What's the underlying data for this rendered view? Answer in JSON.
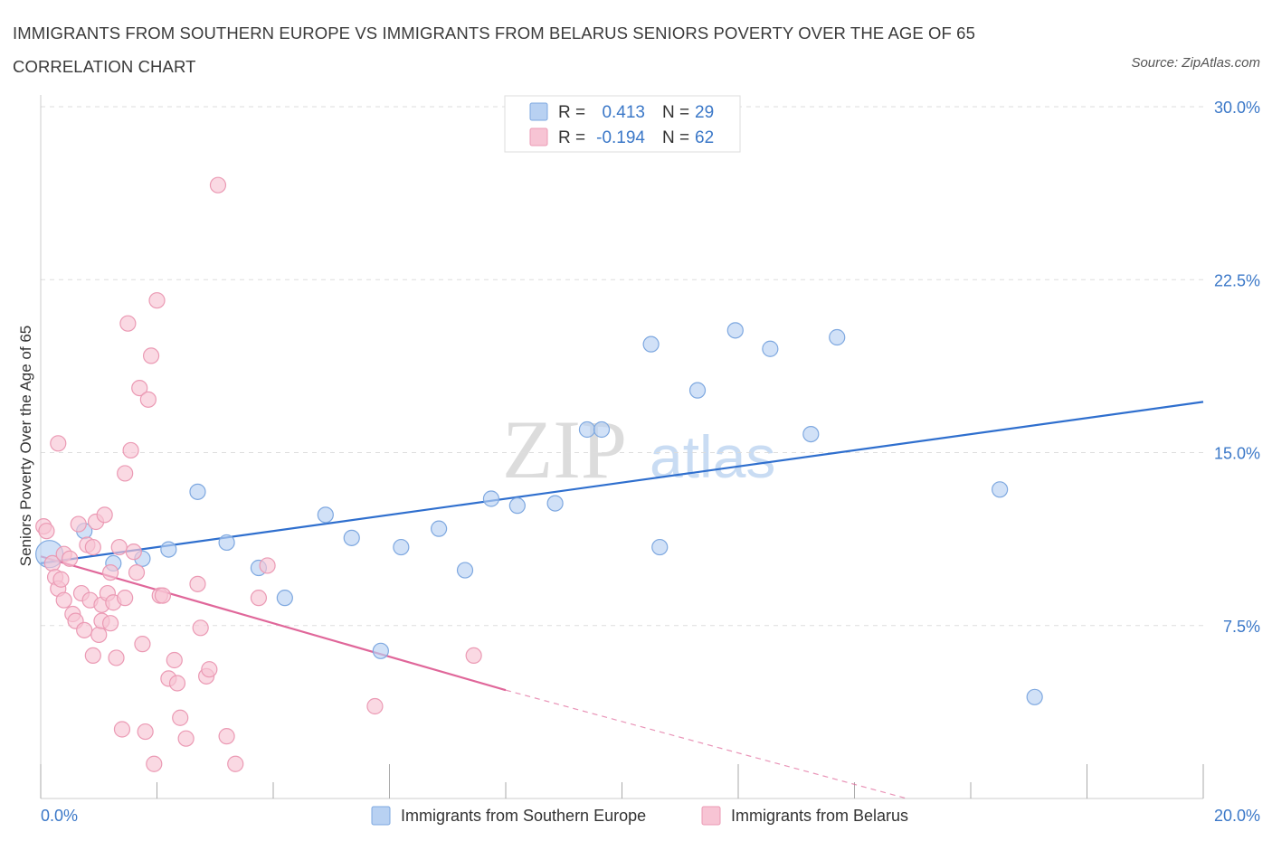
{
  "title": "IMMIGRANTS FROM SOUTHERN EUROPE VS IMMIGRANTS FROM BELARUS SENIORS POVERTY OVER THE AGE OF 65 CORRELATION CHART",
  "source": "Source: ZipAtlas.com",
  "watermark": {
    "zip": "ZIP",
    "atlas": "atlas"
  },
  "stats": [
    {
      "r_label": "R =",
      "r_value": "0.413",
      "n_label": "N =",
      "n_value": "29"
    },
    {
      "r_label": "R =",
      "r_value": "-0.194",
      "n_label": "N =",
      "n_value": "62"
    }
  ],
  "legend": [
    "Immigrants from Southern Europe",
    "Immigrants from Belarus"
  ],
  "colors": {
    "blue_fill": "#b8d1f2",
    "blue_stroke": "#7ea8e0",
    "blue_line": "#2f6fce",
    "pink_fill": "#f7c4d4",
    "pink_stroke": "#eb9ab4",
    "pink_line": "#e0679a",
    "accent_text": "#3b78c8",
    "grid": "#dddddd"
  },
  "chart_data": {
    "type": "scatter",
    "title": "IMMIGRANTS FROM SOUTHERN EUROPE VS IMMIGRANTS FROM BELARUS SENIORS POVERTY OVER THE AGE OF 65 CORRELATION CHART",
    "xlabel": "",
    "ylabel": "Seniors Poverty Over the Age of 65",
    "xlim": [
      0,
      20
    ],
    "ylim": [
      0,
      30
    ],
    "x_tick_labels": [
      "0.0%",
      "20.0%"
    ],
    "y_ticks": [
      7.5,
      15.0,
      22.5,
      30.0
    ],
    "y_tick_labels": [
      "7.5%",
      "15.0%",
      "22.5%",
      "30.0%"
    ],
    "grid": true,
    "legend_position": "bottom",
    "series": [
      {
        "name": "Immigrants from Southern Europe",
        "color": "#b8d1f2",
        "trend": {
          "x": [
            0,
            20
          ],
          "y": [
            10.2,
            17.2
          ],
          "style": "solid"
        },
        "points": [
          {
            "x": 0.15,
            "y": 10.6,
            "big": true
          },
          {
            "x": 0.75,
            "y": 11.6
          },
          {
            "x": 1.25,
            "y": 10.2
          },
          {
            "x": 1.75,
            "y": 10.4
          },
          {
            "x": 2.2,
            "y": 10.8
          },
          {
            "x": 2.7,
            "y": 13.3
          },
          {
            "x": 3.2,
            "y": 11.1
          },
          {
            "x": 3.75,
            "y": 10.0
          },
          {
            "x": 4.2,
            "y": 8.7
          },
          {
            "x": 4.9,
            "y": 12.3
          },
          {
            "x": 5.35,
            "y": 11.3
          },
          {
            "x": 5.85,
            "y": 6.4
          },
          {
            "x": 6.2,
            "y": 10.9
          },
          {
            "x": 6.85,
            "y": 11.7
          },
          {
            "x": 7.3,
            "y": 9.9
          },
          {
            "x": 7.75,
            "y": 13.0
          },
          {
            "x": 8.2,
            "y": 12.7
          },
          {
            "x": 8.85,
            "y": 12.8
          },
          {
            "x": 9.4,
            "y": 16.0
          },
          {
            "x": 9.65,
            "y": 16.0
          },
          {
            "x": 10.5,
            "y": 19.7
          },
          {
            "x": 10.65,
            "y": 10.9
          },
          {
            "x": 11.3,
            "y": 17.7
          },
          {
            "x": 11.95,
            "y": 20.3
          },
          {
            "x": 12.55,
            "y": 19.5
          },
          {
            "x": 13.25,
            "y": 15.8
          },
          {
            "x": 13.7,
            "y": 20.0
          },
          {
            "x": 16.5,
            "y": 13.4
          },
          {
            "x": 17.1,
            "y": 4.4
          }
        ]
      },
      {
        "name": "Immigrants from Belarus",
        "color": "#f7c4d4",
        "trend": {
          "x": [
            0,
            8
          ],
          "y": [
            10.5,
            4.7
          ],
          "style": "solid",
          "extended_x": [
            8,
            14.9
          ],
          "extended_y": [
            4.7,
            0
          ],
          "extended_style": "dashed"
        },
        "points": [
          {
            "x": 0.05,
            "y": 11.8
          },
          {
            "x": 0.1,
            "y": 11.6
          },
          {
            "x": 0.2,
            "y": 10.2
          },
          {
            "x": 0.25,
            "y": 9.6
          },
          {
            "x": 0.3,
            "y": 15.4
          },
          {
            "x": 0.3,
            "y": 9.1
          },
          {
            "x": 0.35,
            "y": 9.5
          },
          {
            "x": 0.4,
            "y": 8.6
          },
          {
            "x": 0.4,
            "y": 10.6
          },
          {
            "x": 0.5,
            "y": 10.4
          },
          {
            "x": 0.55,
            "y": 8.0
          },
          {
            "x": 0.6,
            "y": 7.7
          },
          {
            "x": 0.65,
            "y": 11.9
          },
          {
            "x": 0.7,
            "y": 8.9
          },
          {
            "x": 0.75,
            "y": 7.3
          },
          {
            "x": 0.8,
            "y": 11.0
          },
          {
            "x": 0.85,
            "y": 8.6
          },
          {
            "x": 0.9,
            "y": 6.2
          },
          {
            "x": 0.9,
            "y": 10.9
          },
          {
            "x": 0.95,
            "y": 12.0
          },
          {
            "x": 1.0,
            "y": 7.1
          },
          {
            "x": 1.05,
            "y": 8.4
          },
          {
            "x": 1.05,
            "y": 7.7
          },
          {
            "x": 1.1,
            "y": 12.3
          },
          {
            "x": 1.15,
            "y": 8.9
          },
          {
            "x": 1.2,
            "y": 9.8
          },
          {
            "x": 1.2,
            "y": 7.6
          },
          {
            "x": 1.25,
            "y": 8.5
          },
          {
            "x": 1.3,
            "y": 6.1
          },
          {
            "x": 1.35,
            "y": 10.9
          },
          {
            "x": 1.4,
            "y": 3.0
          },
          {
            "x": 1.45,
            "y": 14.1
          },
          {
            "x": 1.45,
            "y": 8.7
          },
          {
            "x": 1.5,
            "y": 20.6
          },
          {
            "x": 1.55,
            "y": 15.1
          },
          {
            "x": 1.6,
            "y": 10.7
          },
          {
            "x": 1.65,
            "y": 9.8
          },
          {
            "x": 1.7,
            "y": 17.8
          },
          {
            "x": 1.75,
            "y": 6.7
          },
          {
            "x": 1.8,
            "y": 2.9
          },
          {
            "x": 1.85,
            "y": 17.3
          },
          {
            "x": 1.9,
            "y": 19.2
          },
          {
            "x": 1.95,
            "y": 1.5
          },
          {
            "x": 2.0,
            "y": 21.6
          },
          {
            "x": 2.05,
            "y": 8.8
          },
          {
            "x": 2.1,
            "y": 8.8
          },
          {
            "x": 2.2,
            "y": 5.2
          },
          {
            "x": 2.3,
            "y": 6.0
          },
          {
            "x": 2.35,
            "y": 5.0
          },
          {
            "x": 2.4,
            "y": 3.5
          },
          {
            "x": 2.5,
            "y": 2.6
          },
          {
            "x": 2.7,
            "y": 9.3
          },
          {
            "x": 2.75,
            "y": 7.4
          },
          {
            "x": 2.85,
            "y": 5.3
          },
          {
            "x": 2.9,
            "y": 5.6
          },
          {
            "x": 3.05,
            "y": 26.6
          },
          {
            "x": 3.2,
            "y": 2.7
          },
          {
            "x": 3.35,
            "y": 1.5
          },
          {
            "x": 3.75,
            "y": 8.7
          },
          {
            "x": 3.9,
            "y": 10.1
          },
          {
            "x": 5.75,
            "y": 4.0
          },
          {
            "x": 7.45,
            "y": 6.2
          }
        ]
      }
    ]
  }
}
